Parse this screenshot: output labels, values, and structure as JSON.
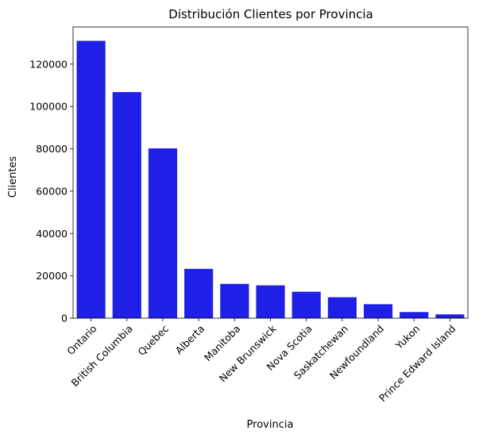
{
  "chart_data": {
    "type": "bar",
    "title": "Distribución Clientes por Provincia",
    "xlabel": "Provincia",
    "ylabel": "Clientes",
    "categories": [
      "Ontario",
      "British Columbia",
      "Quebec",
      "Alberta",
      "Manitoba",
      "New Brunswick",
      "Nova Scotia",
      "Saskatchewan",
      "Newfoundland",
      "Yukon",
      "Prince Edward Island"
    ],
    "values": [
      131000,
      106800,
      80200,
      23300,
      16200,
      15500,
      12500,
      9900,
      6600,
      2900,
      1800
    ],
    "ylim": [
      0,
      137550
    ],
    "yticks": [
      0,
      20000,
      40000,
      60000,
      80000,
      100000,
      120000
    ],
    "bar_color": "#1f1fe6",
    "grid": false,
    "legend": "none"
  }
}
